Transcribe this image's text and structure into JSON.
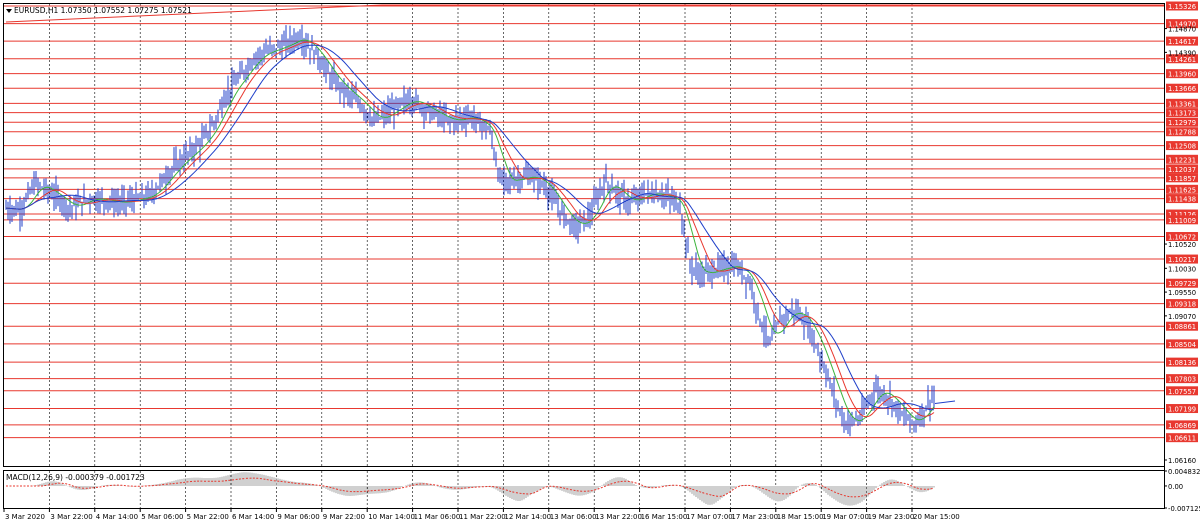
{
  "main_chart": {
    "title": "EURUSD,H1  1.07350 1.07552 1.07275 1.07521",
    "y_axis_labels": [
      "1.15326",
      "1.14970",
      "1.14617",
      "1.14261",
      "1.13960",
      "1.13666",
      "1.13361",
      "1.13173",
      "1.12979",
      "1.12788",
      "1.12508",
      "1.12231",
      "1.12037",
      "1.11857",
      "1.11625",
      "1.11438",
      "1.11126",
      "1.11009",
      "1.10672",
      "1.10217",
      "1.09729",
      "1.09318",
      "1.08861",
      "1.08504",
      "1.08136",
      "1.07803",
      "1.07557",
      "1.07199",
      "1.06869",
      "1.06611"
    ],
    "y_axis_plain_labels": [
      "1.14870",
      "1.14390",
      "1.10520",
      "1.10030",
      "1.09550",
      "1.09070",
      "1.06160"
    ],
    "x_axis_labels": [
      "3 Mar 2020",
      "3 Mar 22:00",
      "4 Mar 14:00",
      "5 Mar 06:00",
      "5 Mar 22:00",
      "6 Mar 14:00",
      "9 Mar 06:00",
      "9 Mar 22:00",
      "10 Mar 14:00",
      "11 Mar 06:00",
      "11 Mar 22:00",
      "12 Mar 14:00",
      "13 Mar 06:00",
      "13 Mar 22:00",
      "16 Mar 15:00",
      "17 Mar 07:00",
      "17 Mar 23:00",
      "18 Mar 15:00",
      "19 Mar 07:00",
      "19 Mar 23:00",
      "20 Mar 15:00"
    ]
  },
  "indicator_panel": {
    "title": "MACD(12,26,9) -0.000379 -0.001723",
    "y_axis_labels": [
      "0.004832",
      "0.00",
      "-0.007125"
    ]
  },
  "colors": {
    "price_line": "#e8382f",
    "price_label_bg": "#e8382f",
    "candles": "#1f3fc9",
    "ma_fast": "#3cb43c",
    "ma_mid": "#e8382f",
    "ma_slow": "#1f3fc9",
    "grid": "#000000",
    "macd_signal": "#e8382f",
    "macd_hist": "#a0a0a0"
  },
  "icons": {
    "menu_arrow": "triangle-down-icon"
  },
  "chart_data": [
    {
      "type": "line",
      "title": "EURUSD,H1  1.07350 1.07552 1.07275 1.07521",
      "x": [
        "3 Mar 2020",
        "3 Mar 22:00",
        "4 Mar 14:00",
        "5 Mar 06:00",
        "5 Mar 22:00",
        "6 Mar 14:00",
        "9 Mar 06:00",
        "9 Mar 22:00",
        "10 Mar 14:00",
        "11 Mar 06:00",
        "11 Mar 22:00",
        "12 Mar 14:00",
        "13 Mar 06:00",
        "13 Mar 22:00",
        "16 Mar 15:00",
        "17 Mar 07:00",
        "17 Mar 23:00",
        "18 Mar 15:00",
        "19 Mar 07:00",
        "19 Mar 23:00",
        "20 Mar 15:00"
      ],
      "series": [
        {
          "values": [
            1.112,
            1.1175,
            1.114,
            1.1145,
            1.124,
            1.138,
            1.147,
            1.133,
            1.129,
            1.133,
            1.127,
            1.117,
            1.108,
            1.113,
            1.117,
            1.1,
            1.098,
            1.088,
            1.072,
            1.074,
            1.0752
          ]
        }
      ],
      "ylim": [
        1.0616,
        1.1533
      ],
      "grid": true
    },
    {
      "type": "line",
      "title": "MACD(12,26,9) -0.000379 -0.001723",
      "ylim": [
        -0.007125,
        0.004832
      ]
    }
  ]
}
